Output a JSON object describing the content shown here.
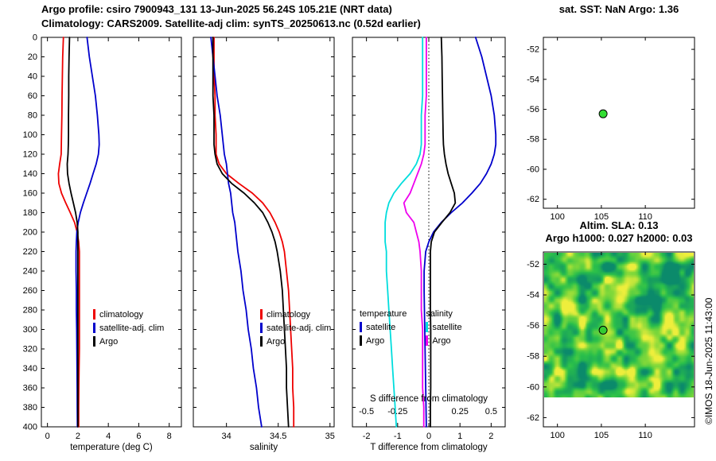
{
  "header": {
    "line1": "Argo profile: csiro 7900943_131 13-Jun-2025 56.24S 105.21E (NRT data)",
    "line2": "Climatology: CARS2009. Satellite-adj clim: synTS_20250613.nc (0.52d earlier)"
  },
  "footer": {
    "copyright": "©IMOS 18-Jun-2025 11:43:00"
  },
  "chart_data": [
    {
      "type": "line",
      "name": "temperature-profile",
      "xlabel": "temperature (deg C)",
      "xlim": [
        -0.4,
        8.8
      ],
      "xticks": [
        0,
        2,
        4,
        6,
        8
      ],
      "ylim": [
        0,
        400
      ],
      "yticks": [
        0,
        20,
        40,
        60,
        80,
        100,
        120,
        140,
        160,
        180,
        200,
        220,
        240,
        260,
        280,
        300,
        320,
        340,
        360,
        380,
        400
      ],
      "ytick_labels": true,
      "depths": [
        0,
        20,
        40,
        60,
        80,
        100,
        110,
        120,
        130,
        140,
        150,
        160,
        170,
        180,
        190,
        200,
        210,
        220,
        240,
        260,
        280,
        300,
        320,
        340,
        360,
        380,
        400
      ],
      "series": [
        {
          "key": "clim",
          "name": "climatology",
          "color": "#ee0000",
          "values": [
            1.05,
            1.0,
            0.98,
            0.96,
            0.95,
            0.92,
            0.91,
            0.9,
            0.8,
            0.72,
            0.75,
            0.92,
            1.2,
            1.5,
            1.78,
            1.95,
            2.05,
            2.1,
            2.1,
            2.1,
            2.1,
            2.1,
            2.1,
            2.08,
            2.06,
            2.05,
            2.05
          ]
        },
        {
          "key": "satadj",
          "name": "satellite-adj. clim",
          "color": "#0000cc",
          "values": [
            2.6,
            2.75,
            2.95,
            3.15,
            3.28,
            3.38,
            3.4,
            3.35,
            3.2,
            3.0,
            2.8,
            2.58,
            2.36,
            2.16,
            2.02,
            1.93,
            1.9,
            1.88,
            1.88,
            1.9,
            1.9,
            1.92,
            1.93,
            1.94,
            1.95,
            1.96,
            1.97
          ]
        },
        {
          "key": "argo",
          "name": "Argo",
          "color": "#000000",
          "values": [
            1.45,
            1.42,
            1.4,
            1.4,
            1.38,
            1.38,
            1.37,
            1.35,
            1.3,
            1.32,
            1.42,
            1.55,
            1.7,
            1.85,
            1.95,
            2.0,
            2.0,
            2.0,
            2.0,
            2.0,
            2.0,
            2.0,
            2.0,
            2.0,
            2.0,
            2.0,
            2.0
          ]
        }
      ]
    },
    {
      "type": "line",
      "name": "salinity-profile",
      "xlabel": "salinity",
      "xlim": [
        33.68,
        35.04
      ],
      "xticks": [
        34,
        34.5,
        35
      ],
      "ylim": [
        0,
        400
      ],
      "yticks": [
        0,
        20,
        40,
        60,
        80,
        100,
        120,
        140,
        160,
        180,
        200,
        220,
        240,
        260,
        280,
        300,
        320,
        340,
        360,
        380,
        400
      ],
      "ytick_labels": false,
      "depths": [
        0,
        20,
        40,
        60,
        80,
        100,
        110,
        120,
        130,
        140,
        150,
        160,
        170,
        180,
        190,
        200,
        210,
        220,
        240,
        260,
        280,
        300,
        320,
        340,
        360,
        380,
        400
      ],
      "series": [
        {
          "key": "clim",
          "name": "climatology",
          "color": "#ee0000",
          "values": [
            33.88,
            33.88,
            33.88,
            33.89,
            33.89,
            33.9,
            33.9,
            33.9,
            33.93,
            34.0,
            34.12,
            34.25,
            34.35,
            34.42,
            34.47,
            34.51,
            34.54,
            34.56,
            34.58,
            34.6,
            34.61,
            34.62,
            34.63,
            34.64,
            34.64,
            34.65,
            34.65
          ]
        },
        {
          "key": "satadj",
          "name": "satellite-adj. clim",
          "color": "#0000cc",
          "values": [
            33.85,
            33.87,
            33.89,
            33.91,
            33.94,
            33.96,
            33.97,
            33.98,
            34.0,
            34.01,
            34.02,
            34.04,
            34.05,
            34.06,
            34.08,
            34.09,
            34.1,
            34.11,
            34.14,
            34.16,
            34.19,
            34.21,
            34.24,
            34.26,
            34.29,
            34.31,
            34.34
          ]
        },
        {
          "key": "argo",
          "name": "Argo",
          "color": "#000000",
          "values": [
            33.87,
            33.87,
            33.87,
            33.87,
            33.88,
            33.88,
            33.88,
            33.89,
            33.91,
            33.96,
            34.05,
            34.17,
            34.27,
            34.35,
            34.4,
            34.44,
            34.47,
            34.49,
            34.52,
            34.54,
            34.55,
            34.56,
            34.57,
            34.58,
            34.58,
            34.59,
            34.6
          ]
        }
      ]
    },
    {
      "type": "line",
      "name": "difference-profile",
      "xlabel": "T difference from climatology",
      "xlim": [
        -2.45,
        2.45
      ],
      "xticks": [
        -2,
        -1,
        0,
        1,
        2
      ],
      "zero_line": true,
      "ylim": [
        0,
        400
      ],
      "yticks": [
        0,
        20,
        40,
        60,
        80,
        100,
        120,
        140,
        160,
        180,
        200,
        220,
        240,
        260,
        280,
        300,
        320,
        340,
        360,
        380,
        400
      ],
      "ytick_labels": false,
      "legend_headers": [
        "temperature",
        "salinity"
      ],
      "s_axis": {
        "title": "S difference from climatology",
        "labels": [
          "-0.5",
          "-0.25",
          "0.25",
          "0.5"
        ],
        "values": [
          -0.5,
          -0.25,
          0.25,
          0.5
        ],
        "scale": 4
      },
      "depths": [
        0,
        20,
        40,
        60,
        80,
        100,
        110,
        120,
        130,
        140,
        150,
        160,
        170,
        180,
        190,
        200,
        210,
        220,
        240,
        260,
        280,
        300,
        320,
        340,
        360,
        380,
        400
      ],
      "series": [
        {
          "key": "t-sat",
          "name": "satellite",
          "group": "temperature",
          "color": "#0000cc",
          "scale": 1,
          "values": [
            1.5,
            1.7,
            1.85,
            2.0,
            2.1,
            2.15,
            2.15,
            2.1,
            2.0,
            1.85,
            1.65,
            1.38,
            1.08,
            0.72,
            0.4,
            0.15,
            0.0,
            -0.1,
            -0.15,
            -0.15,
            -0.14,
            -0.13,
            -0.12,
            -0.11,
            -0.1,
            -0.09,
            -0.08
          ]
        },
        {
          "key": "t-argo",
          "name": "Argo",
          "group": "temperature",
          "color": "#000000",
          "scale": 1,
          "values": [
            0.4,
            0.42,
            0.43,
            0.44,
            0.45,
            0.46,
            0.47,
            0.5,
            0.55,
            0.62,
            0.72,
            0.82,
            0.85,
            0.68,
            0.42,
            0.18,
            0.08,
            0.05,
            0.05,
            0.05,
            0.05,
            0.06,
            0.06,
            0.06,
            0.06,
            0.05,
            0.05
          ]
        },
        {
          "key": "s-sat",
          "name": "satellite",
          "group": "salinity",
          "color": "#00dddd",
          "scale": 4,
          "values": [
            -0.05,
            -0.05,
            -0.05,
            -0.05,
            -0.06,
            -0.06,
            -0.06,
            -0.07,
            -0.1,
            -0.15,
            -0.22,
            -0.28,
            -0.32,
            -0.34,
            -0.35,
            -0.35,
            -0.35,
            -0.34,
            -0.34,
            -0.33,
            -0.32,
            -0.31,
            -0.3,
            -0.29,
            -0.28,
            -0.27,
            -0.26
          ]
        },
        {
          "key": "s-argo",
          "name": "Argo",
          "group": "salinity",
          "color": "#ee00ee",
          "scale": 4,
          "values": [
            -0.02,
            -0.02,
            -0.02,
            -0.02,
            -0.03,
            -0.03,
            -0.03,
            -0.04,
            -0.06,
            -0.09,
            -0.12,
            -0.15,
            -0.2,
            -0.18,
            -0.12,
            -0.1,
            -0.08,
            -0.07,
            -0.06,
            -0.06,
            -0.06,
            -0.05,
            -0.05,
            -0.05,
            -0.05,
            -0.04,
            -0.04
          ]
        }
      ]
    },
    {
      "type": "map",
      "name": "sst-map",
      "title": "sat. SST: NaN Argo: 1.36",
      "xlim": [
        98.4,
        115.6
      ],
      "xticks": [
        100,
        105,
        110
      ],
      "ylim": [
        -51.2,
        -62.6
      ],
      "yticks": [
        -52,
        -54,
        -56,
        -58,
        -60,
        -62
      ],
      "marker": {
        "x": 105.2,
        "y": -56.3,
        "color": "#33dd33"
      }
    },
    {
      "type": "heatmap",
      "name": "sla-map",
      "title1": "Altim. SLA: 0.13",
      "title2": "Argo h1000: 0.027 h2000: 0.03",
      "xlim": [
        98.4,
        115.6
      ],
      "xticks": [
        100,
        105,
        110
      ],
      "ylim": [
        -51.2,
        -62.6
      ],
      "yticks": [
        -52,
        -54,
        -56,
        -58,
        -60,
        -62
      ],
      "marker": {
        "x": 105.2,
        "y": -56.3,
        "color": "#33cc33"
      },
      "heatmap": {
        "y_bottom": -60.7,
        "seed": 42,
        "palette": [
          {
            "t": 0.0,
            "c": "#0b8a6b"
          },
          {
            "t": 0.4,
            "c": "#2bc04a"
          },
          {
            "t": 0.72,
            "c": "#7fd83a"
          },
          {
            "t": 1.0,
            "c": "#eeee3c"
          }
        ]
      }
    }
  ]
}
